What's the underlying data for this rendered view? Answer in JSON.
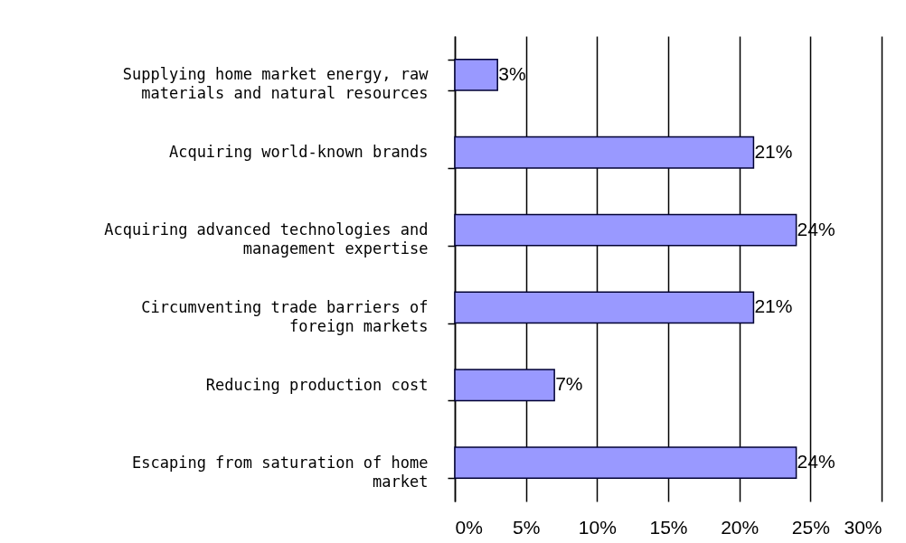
{
  "chart_data": {
    "type": "bar",
    "orientation": "horizontal",
    "categories": [
      "Supplying home market energy, raw materials and natural resources",
      "Acquiring world-known brands",
      "Acquiring advanced technologies and management expertise",
      "Circumventing trade barriers of foreign markets",
      "Reducing production cost",
      "Escaping from saturation of home market"
    ],
    "values": [
      3,
      21,
      24,
      21,
      7,
      24
    ],
    "value_labels": [
      "3%",
      "21%",
      "24%",
      "21%",
      "7%",
      "24%"
    ],
    "color": "#9999ff",
    "xlim": [
      0,
      30
    ],
    "xticks": [
      {
        "value": 0,
        "label": "0%"
      },
      {
        "value": 5,
        "label": "5%"
      },
      {
        "value": 10,
        "label": "10%"
      },
      {
        "value": 15,
        "label": "15%"
      },
      {
        "value": 20,
        "label": "20%"
      },
      {
        "value": 25,
        "label": "25%"
      },
      {
        "value": 30,
        "label": "30%"
      }
    ],
    "grid": "x"
  }
}
